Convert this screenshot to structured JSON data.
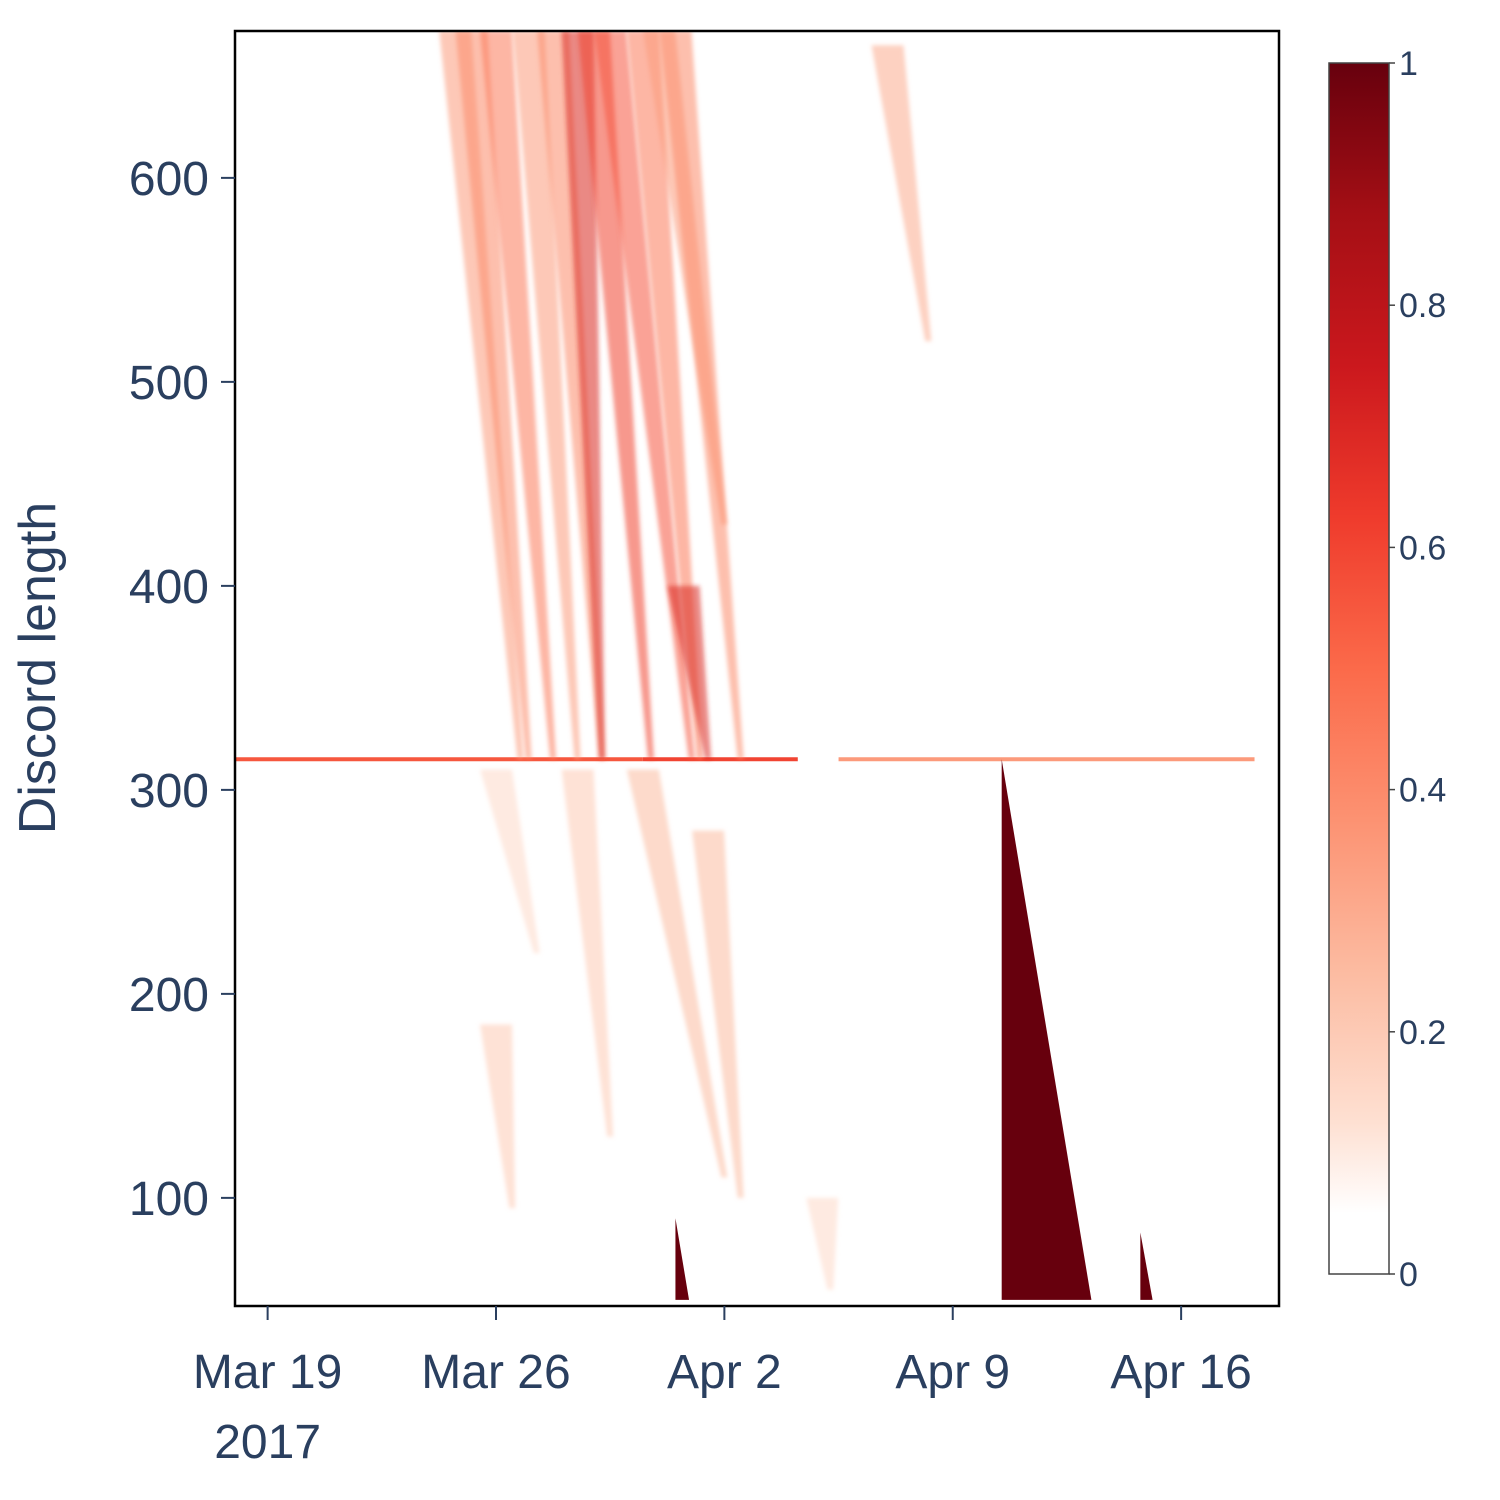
{
  "chart_data": {
    "type": "heatmap",
    "title": "",
    "xlabel": "",
    "ylabel": "Discord length",
    "x_range": [
      "2017-03-18T00:00",
      "2017-04-19T00:00"
    ],
    "y_range": [
      47,
      672
    ],
    "x_ticks": [
      {
        "date": "2017-03-19",
        "label": "Mar 19",
        "sublabel": "2017"
      },
      {
        "date": "2017-03-26",
        "label": "Mar 26",
        "sublabel": ""
      },
      {
        "date": "2017-04-02",
        "label": "Apr 2",
        "sublabel": ""
      },
      {
        "date": "2017-04-09",
        "label": "Apr 9",
        "sublabel": ""
      },
      {
        "date": "2017-04-16",
        "label": "Apr 16",
        "sublabel": ""
      }
    ],
    "y_ticks": [
      {
        "value": 100,
        "label": "100"
      },
      {
        "value": 200,
        "label": "200"
      },
      {
        "value": 300,
        "label": "300"
      },
      {
        "value": 400,
        "label": "400"
      },
      {
        "value": 500,
        "label": "500"
      },
      {
        "value": 600,
        "label": "600"
      }
    ],
    "colorscale": {
      "name": "Reds",
      "stops": [
        "#fff5f0",
        "#fee0d2",
        "#fcbba1",
        "#fc9272",
        "#fb6a4a",
        "#ef3b2c",
        "#cb181d",
        "#a50f15",
        "#67000d"
      ],
      "zmin": 0,
      "zmax": 1,
      "ticks": [
        {
          "value": 0,
          "label": "0"
        },
        {
          "value": 0.2,
          "label": "0.2"
        },
        {
          "value": 0.4,
          "label": "0.4"
        },
        {
          "value": 0.6,
          "label": "0.6"
        },
        {
          "value": 0.8,
          "label": "0.8"
        },
        {
          "value": 1,
          "label": "1"
        }
      ]
    },
    "features": [
      {
        "kind": "line",
        "y": 315,
        "x_start": "2017-03-18T00:00",
        "x_end": "2017-03-30T12:00",
        "z": 0.55
      },
      {
        "kind": "line",
        "y": 315,
        "x_start": "2017-03-30T12:00",
        "x_end": "2017-04-04T06:00",
        "z": 0.6
      },
      {
        "kind": "line",
        "y": 315,
        "x_start": "2017-04-05T12:00",
        "x_end": "2017-04-18T06:00",
        "z": 0.35
      },
      {
        "kind": "streak",
        "x_top": "2017-03-24T18:00",
        "y_top": 672,
        "x_bot": "2017-03-26T18:00",
        "y_bot": 315,
        "z": 0.35
      },
      {
        "kind": "streak",
        "x_top": "2017-03-25T06:00",
        "y_top": 672,
        "x_bot": "2017-03-27T00:00",
        "y_bot": 315,
        "z": 0.4
      },
      {
        "kind": "streak",
        "x_top": "2017-03-26T00:00",
        "y_top": 672,
        "x_bot": "2017-03-27T18:00",
        "y_bot": 315,
        "z": 0.45
      },
      {
        "kind": "streak",
        "x_top": "2017-03-27T00:00",
        "y_top": 672,
        "x_bot": "2017-03-28T12:00",
        "y_bot": 315,
        "z": 0.35
      },
      {
        "kind": "streak",
        "x_top": "2017-03-27T18:00",
        "y_top": 672,
        "x_bot": "2017-03-29T06:00",
        "y_bot": 315,
        "z": 0.4
      },
      {
        "kind": "streak",
        "x_top": "2017-03-28T12:00",
        "y_top": 672,
        "x_bot": "2017-03-29T06:00",
        "y_bot": 315,
        "z": 0.7
      },
      {
        "kind": "streak",
        "x_top": "2017-03-29T00:00",
        "y_top": 672,
        "x_bot": "2017-03-30T18:00",
        "y_bot": 315,
        "z": 0.6
      },
      {
        "kind": "streak",
        "x_top": "2017-03-29T12:00",
        "y_top": 672,
        "x_bot": "2017-04-01T00:00",
        "y_bot": 315,
        "z": 0.55
      },
      {
        "kind": "streak",
        "x_top": "2017-03-30T12:00",
        "y_top": 672,
        "x_bot": "2017-04-01T06:00",
        "y_bot": 315,
        "z": 0.45
      },
      {
        "kind": "streak",
        "x_top": "2017-03-31T00:00",
        "y_top": 672,
        "x_bot": "2017-04-02T00:00",
        "y_bot": 430,
        "z": 0.35
      },
      {
        "kind": "streak",
        "x_top": "2017-03-31T12:00",
        "y_top": 672,
        "x_bot": "2017-04-02T12:00",
        "y_bot": 315,
        "z": 0.4
      },
      {
        "kind": "streak",
        "x_top": "2017-03-31T18:00",
        "y_top": 400,
        "x_bot": "2017-04-01T12:00",
        "y_bot": 315,
        "z": 0.7
      },
      {
        "kind": "streak",
        "x_top": "2017-03-26T00:00",
        "y_top": 310,
        "x_bot": "2017-03-27T06:00",
        "y_bot": 220,
        "z": 0.15
      },
      {
        "kind": "streak",
        "x_top": "2017-03-28T12:00",
        "y_top": 310,
        "x_bot": "2017-03-29T12:00",
        "y_bot": 130,
        "z": 0.2
      },
      {
        "kind": "streak",
        "x_top": "2017-03-30T12:00",
        "y_top": 310,
        "x_bot": "2017-04-02T00:00",
        "y_bot": 110,
        "z": 0.25
      },
      {
        "kind": "streak",
        "x_top": "2017-04-01T12:00",
        "y_top": 280,
        "x_bot": "2017-04-02T12:00",
        "y_bot": 100,
        "z": 0.25
      },
      {
        "kind": "streak",
        "x_top": "2017-03-26T00:00",
        "y_top": 185,
        "x_bot": "2017-03-26T12:00",
        "y_bot": 95,
        "z": 0.2
      },
      {
        "kind": "streak",
        "x_top": "2017-04-07T00:00",
        "y_top": 665,
        "x_bot": "2017-04-08T06:00",
        "y_bot": 520,
        "z": 0.3
      },
      {
        "kind": "streak",
        "x_top": "2017-04-05T00:00",
        "y_top": 100,
        "x_bot": "2017-04-05T06:00",
        "y_bot": 55,
        "z": 0.15
      },
      {
        "kind": "wedge",
        "x_top": "2017-04-10T12:00",
        "y_top": 315,
        "x_bot": "2017-04-13T06:00",
        "y_bot": 50,
        "z": 1
      },
      {
        "kind": "wedge",
        "x_top": "2017-03-31T12:00",
        "y_top": 90,
        "x_bot": "2017-03-31T22:00",
        "y_bot": 50,
        "z": 1
      },
      {
        "kind": "wedge",
        "x_top": "2017-04-14T18:00",
        "y_top": 83,
        "x_bot": "2017-04-15T03:00",
        "y_bot": 50,
        "z": 1
      }
    ]
  }
}
